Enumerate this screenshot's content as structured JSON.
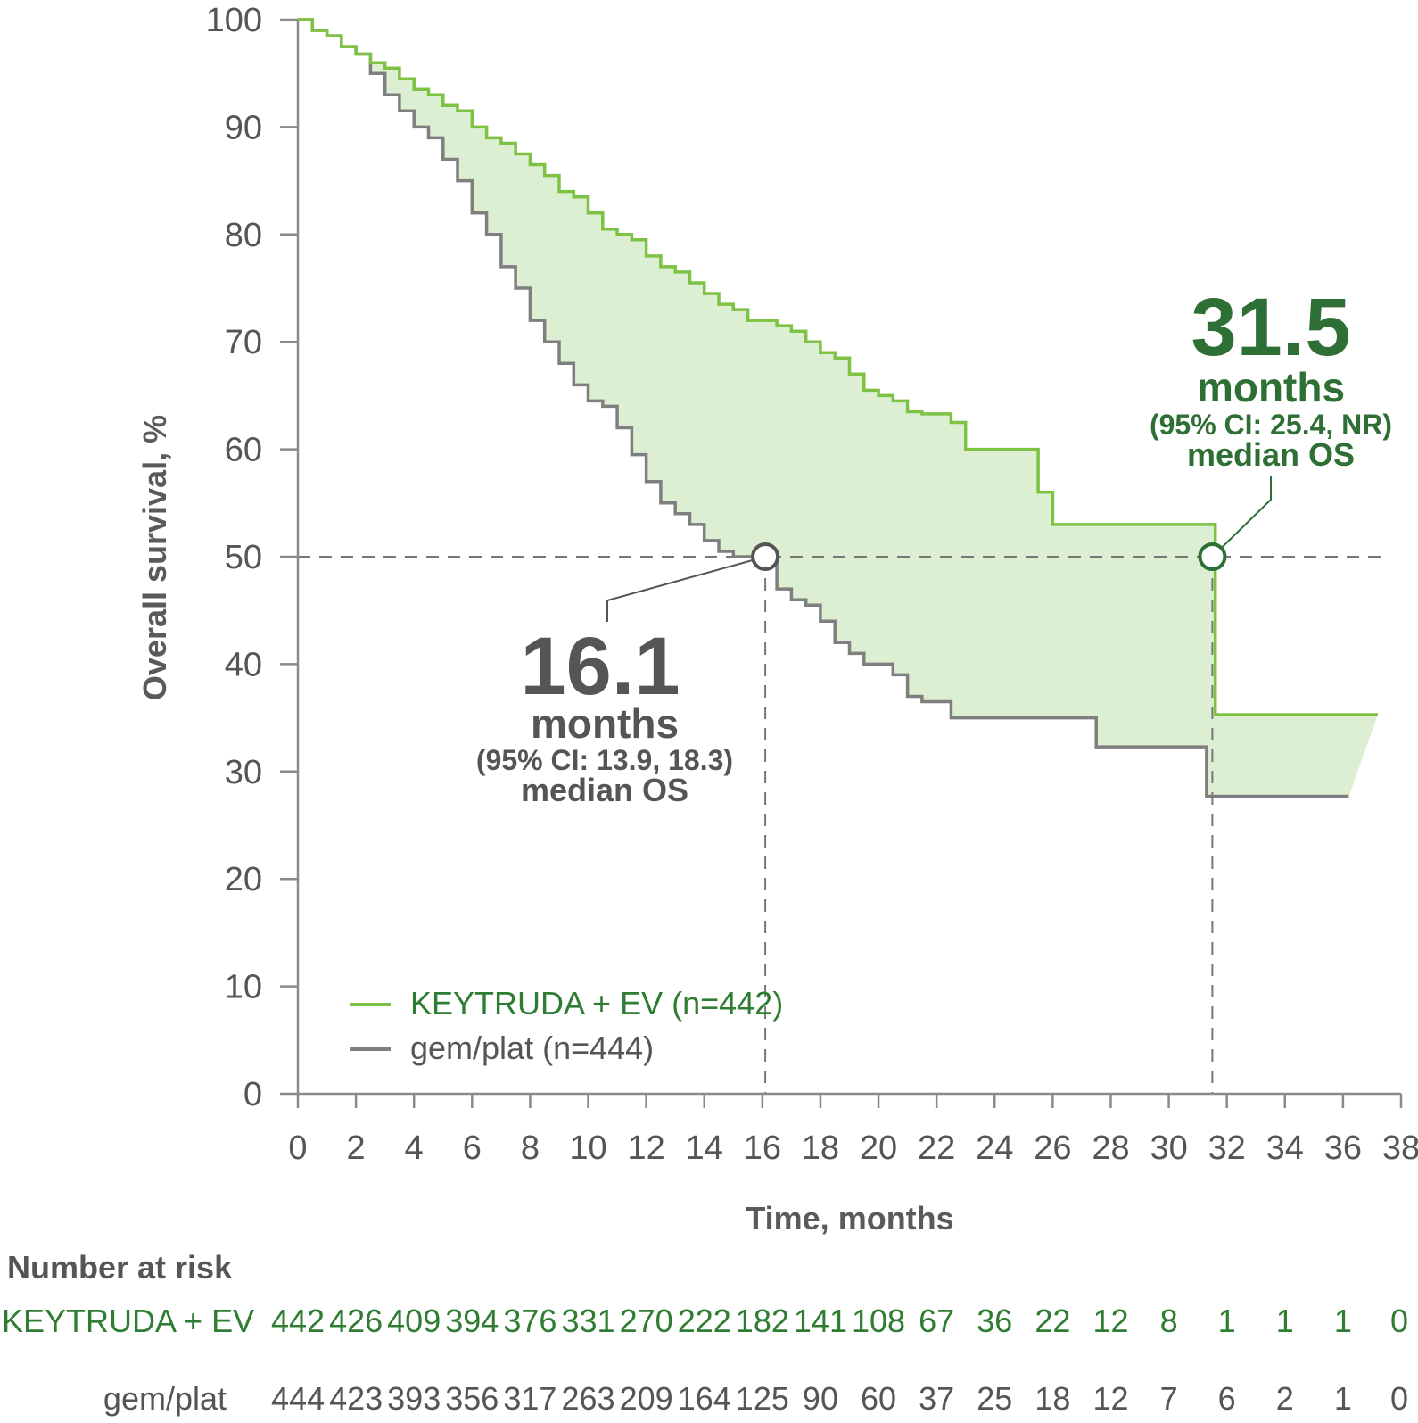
{
  "chart_data": {
    "type": "line",
    "subtype": "kaplan-meier",
    "xlabel": "Time, months",
    "ylabel": "Overall survival, %",
    "xlim": [
      0,
      38
    ],
    "ylim": [
      0,
      100
    ],
    "x_ticks": [
      0,
      2,
      4,
      6,
      8,
      10,
      12,
      14,
      16,
      18,
      20,
      22,
      24,
      26,
      28,
      30,
      32,
      34,
      36,
      38
    ],
    "y_ticks": [
      0,
      10,
      20,
      30,
      40,
      50,
      60,
      70,
      80,
      90,
      100
    ],
    "grid": false,
    "reference_line": {
      "y": 50,
      "style": "dashed"
    },
    "legend_position": "bottom-left",
    "fill_between_series": true,
    "colors": {
      "keytruda": "#7dc243",
      "gem": "#7f7f7f",
      "fill": "#dcefd3",
      "annotation_green": "#2e6f35",
      "annotation_gray": "#555555"
    },
    "series": [
      {
        "name": "KEYTRUDA + EV (n=442)",
        "color": "#7dc243",
        "x": [
          0,
          0.5,
          1,
          1.5,
          2,
          2.5,
          3,
          3.5,
          4,
          4.5,
          5,
          5.5,
          6,
          6.5,
          7,
          7.5,
          8,
          8.5,
          9,
          9.5,
          10,
          10.5,
          11,
          11.5,
          12,
          12.5,
          13,
          13.5,
          14,
          14.5,
          15,
          15.5,
          16,
          16.5,
          17,
          17.5,
          18,
          18.5,
          19,
          19.5,
          20,
          20.5,
          21,
          21.5,
          22,
          22.5,
          23,
          23.5,
          24,
          24.5,
          25,
          25.5,
          26,
          26.5,
          27,
          28,
          29,
          30,
          31,
          31.5,
          31.6,
          33,
          35,
          37.2
        ],
        "y": [
          100,
          99,
          98.5,
          97.5,
          96.8,
          96,
          95.5,
          94.5,
          93.5,
          93,
          92,
          91.5,
          90,
          89,
          88.5,
          87.5,
          86.5,
          85.5,
          84,
          83.5,
          82,
          80.5,
          80,
          79.5,
          78,
          77,
          76.5,
          75.5,
          74.5,
          73.5,
          73,
          72,
          72,
          71.5,
          71,
          70,
          69,
          68.5,
          67,
          65.5,
          65,
          64.5,
          63.5,
          63.3,
          63.3,
          62.5,
          60,
          60,
          60,
          60,
          60,
          56,
          53,
          53,
          53,
          53,
          53,
          53,
          53,
          53,
          35.3,
          35.3,
          35.3,
          35.3
        ]
      },
      {
        "name": "gem/plat (n=444)",
        "color": "#7f7f7f",
        "x": [
          0,
          0.5,
          1,
          1.5,
          2,
          2.5,
          3,
          3.5,
          4,
          4.5,
          5,
          5.5,
          6,
          6.5,
          7,
          7.5,
          8,
          8.5,
          9,
          9.5,
          10,
          10.5,
          11,
          11.5,
          12,
          12.5,
          13,
          13.5,
          14,
          14.5,
          15,
          15.5,
          16,
          16.1,
          16.5,
          17,
          17.5,
          18,
          18.5,
          19,
          19.5,
          20,
          20.5,
          21,
          21.5,
          22,
          22.5,
          23,
          24,
          25,
          26,
          27,
          27.5,
          28,
          29,
          30,
          31,
          31.3,
          31.5,
          32,
          33,
          34,
          35,
          36.2
        ],
        "y": [
          100,
          99,
          98.5,
          97.5,
          96.8,
          95,
          93,
          91.5,
          90,
          89,
          87,
          85,
          82,
          80,
          77,
          75,
          72,
          70,
          68,
          66,
          64.5,
          64,
          62,
          59.5,
          57,
          55,
          54,
          53,
          51.5,
          50.5,
          50,
          50,
          50,
          50,
          47,
          46,
          45.5,
          44,
          42,
          41,
          40,
          40,
          39,
          37,
          36.5,
          36.5,
          35,
          35,
          35,
          35,
          35,
          35,
          32.3,
          32.3,
          32.3,
          32.3,
          32.3,
          27.7,
          27.7,
          27.7,
          27.7,
          27.7,
          27.7,
          27.7
        ]
      }
    ],
    "annotations": [
      {
        "value": "31.5",
        "unit": "months",
        "ci": "(95% CI: 25.4, NR)",
        "label": "median OS",
        "x": 31.5,
        "y": 50,
        "color": "#2e6f35"
      },
      {
        "value": "16.1",
        "unit": "months",
        "ci": "(95% CI: 13.9, 18.3)",
        "label": "median OS",
        "x": 16.1,
        "y": 50,
        "color": "#555555"
      }
    ],
    "number_at_risk": {
      "title": "Number at risk",
      "rows": [
        {
          "label": "KEYTRUDA + EV",
          "color": "#2e7d32",
          "values": [
            "442",
            "426",
            "409",
            "394",
            "376",
            "331",
            "270",
            "222",
            "182",
            "141",
            "108",
            "67",
            "36",
            "22",
            "12",
            "8",
            "1",
            "1",
            "1",
            "0"
          ]
        },
        {
          "label": "gem/plat",
          "color": "#555555",
          "values": [
            "444",
            "423",
            "393",
            "356",
            "317",
            "263",
            "209",
            "164",
            "125",
            "90",
            "60",
            "37",
            "25",
            "18",
            "12",
            "7",
            "6",
            "2",
            "1",
            "0"
          ]
        }
      ]
    }
  }
}
